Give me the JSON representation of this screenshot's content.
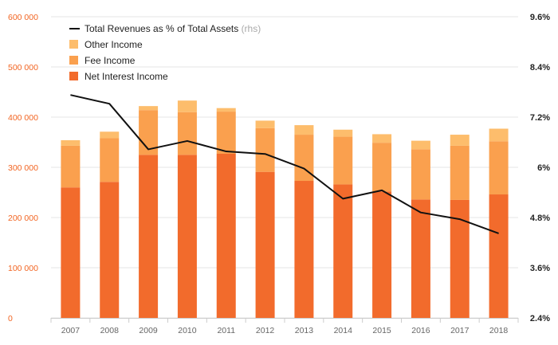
{
  "chart_data": {
    "type": "bar",
    "stacked": true,
    "categories": [
      "2007",
      "2008",
      "2009",
      "2010",
      "2011",
      "2012",
      "2013",
      "2014",
      "2015",
      "2016",
      "2017",
      "2018"
    ],
    "series": [
      {
        "name": "Net Interest Income",
        "color": "#f26b2c",
        "values": [
          260000,
          271000,
          325000,
          325000,
          327000,
          291000,
          273000,
          266000,
          252000,
          236000,
          235000,
          246000
        ]
      },
      {
        "name": "Fee Income",
        "color": "#faa04e",
        "values": [
          83000,
          87000,
          89000,
          85000,
          84000,
          87000,
          92000,
          95000,
          97000,
          100000,
          108000,
          106000
        ]
      },
      {
        "name": "Other Income",
        "color": "#fdbd6c",
        "values": [
          11000,
          13000,
          8000,
          23000,
          7000,
          15000,
          19000,
          14000,
          17000,
          17000,
          22000,
          25000
        ]
      }
    ],
    "line_series": {
      "name": "Total Revenues as % of Total Assets",
      "name_note": "(rhs)",
      "color": "#111111",
      "values": [
        7.73,
        7.52,
        6.43,
        6.63,
        6.38,
        6.32,
        5.97,
        5.25,
        5.45,
        4.92,
        4.76,
        4.42
      ]
    },
    "ylim": [
      0,
      600000
    ],
    "y_ticks": [
      "0",
      "100 000",
      "200 000",
      "300 000",
      "400 000",
      "500 000",
      "600 000"
    ],
    "y2lim": [
      2.4,
      9.6
    ],
    "y2_ticks": [
      "2.4%",
      "3.6%",
      "4.8%",
      "6%",
      "7.2%",
      "8.4%",
      "9.6%"
    ],
    "grid": "horizontal",
    "legend_position": "top-left",
    "xlabel": "",
    "ylabel": "",
    "colors": {
      "axis_left_text": "#f26522",
      "grid": "#e6e6e6",
      "axis_line": "#cccccc"
    }
  }
}
